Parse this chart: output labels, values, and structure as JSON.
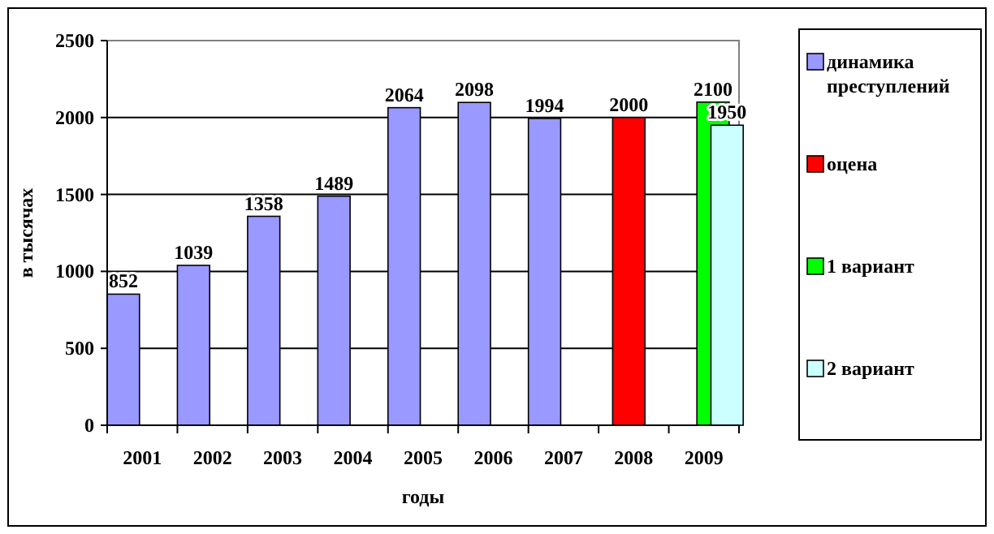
{
  "chart_data": {
    "type": "bar",
    "xlabel": "годы",
    "ylabel": "в тысячах",
    "categories": [
      "2001",
      "2002",
      "2003",
      "2004",
      "2005",
      "2006",
      "2007",
      "2008",
      "2009"
    ],
    "series": [
      {
        "name": "динамика преступлений",
        "color": "#9999ff",
        "values": [
          852,
          1039,
          1358,
          1489,
          2064,
          2098,
          1994,
          null,
          null
        ]
      },
      {
        "name": "оцена",
        "color": "#ff0000",
        "values": [
          null,
          null,
          null,
          null,
          null,
          null,
          null,
          2000,
          null
        ]
      },
      {
        "name": "1 вариант",
        "color": "#00ff00",
        "values": [
          null,
          null,
          null,
          null,
          null,
          null,
          null,
          null,
          2100
        ]
      },
      {
        "name": "2 вариант",
        "color": "#ccffff",
        "values": [
          null,
          null,
          null,
          null,
          null,
          null,
          null,
          null,
          1950
        ]
      }
    ],
    "ylim": [
      0,
      2500
    ],
    "yticks": [
      0,
      500,
      1000,
      1500,
      2000,
      2500
    ],
    "grid": "y",
    "legend": "right",
    "data_labels": true
  }
}
